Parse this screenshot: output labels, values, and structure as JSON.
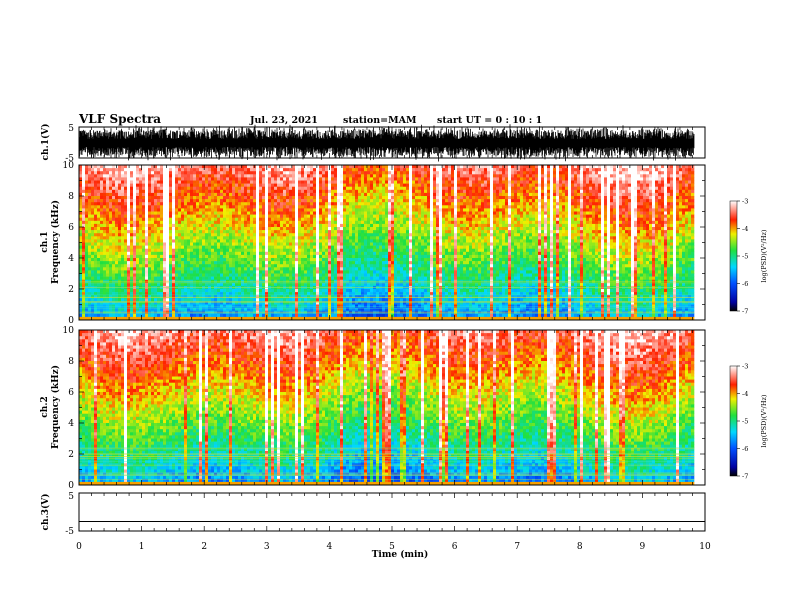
{
  "header": {
    "title": "VLF Spectra",
    "date": "Jul. 23, 2021",
    "station": "station=MAM",
    "start": "start UT = 0 : 10 : 1"
  },
  "chart_data": [
    {
      "type": "line",
      "name": "ch1-waveform",
      "ylabel": "ch.1(V)",
      "ylim": [
        -5,
        5
      ],
      "yticks": [
        "5",
        "-5"
      ],
      "xlim": [
        0,
        10
      ]
    },
    {
      "type": "heatmap",
      "name": "ch1-spectrogram",
      "ylabel_line1": "ch.1",
      "ylabel_line2": "Frequency (kHz)",
      "ylim": [
        0,
        10
      ],
      "yticks": [
        "0",
        "2",
        "4",
        "6",
        "8",
        "10"
      ],
      "xlim": [
        0,
        10
      ],
      "data_end_min": 9.83,
      "colorbar": {
        "label": "log(PSD)(V²/Hz)",
        "range": [
          -7,
          -3
        ],
        "ticks": [
          "-3",
          "-4",
          "-5",
          "-6",
          "-7"
        ]
      }
    },
    {
      "type": "heatmap",
      "name": "ch2-spectrogram",
      "ylabel_line1": "ch.2",
      "ylabel_line2": "Frequency (kHz)",
      "ylim": [
        0,
        10
      ],
      "yticks": [
        "0",
        "2",
        "4",
        "6",
        "8",
        "10"
      ],
      "xlim": [
        0,
        10
      ],
      "data_end_min": 9.83,
      "colorbar": {
        "label": "log(PSD)(V²/Hz)",
        "range": [
          -7,
          -3
        ],
        "ticks": [
          "-3",
          "-4",
          "-5",
          "-6",
          "-7"
        ]
      }
    },
    {
      "type": "line",
      "name": "ch3-waveform",
      "ylabel": "ch.3(V)",
      "ylim": [
        -5,
        5
      ],
      "yticks": [
        "5",
        "-5"
      ],
      "xlim": [
        0,
        10
      ],
      "values": [
        -2.5
      ]
    }
  ],
  "xaxis": {
    "label": "Time (min)",
    "ticks": [
      "0",
      "1",
      "2",
      "3",
      "4",
      "5",
      "6",
      "7",
      "8",
      "9",
      "10"
    ]
  }
}
